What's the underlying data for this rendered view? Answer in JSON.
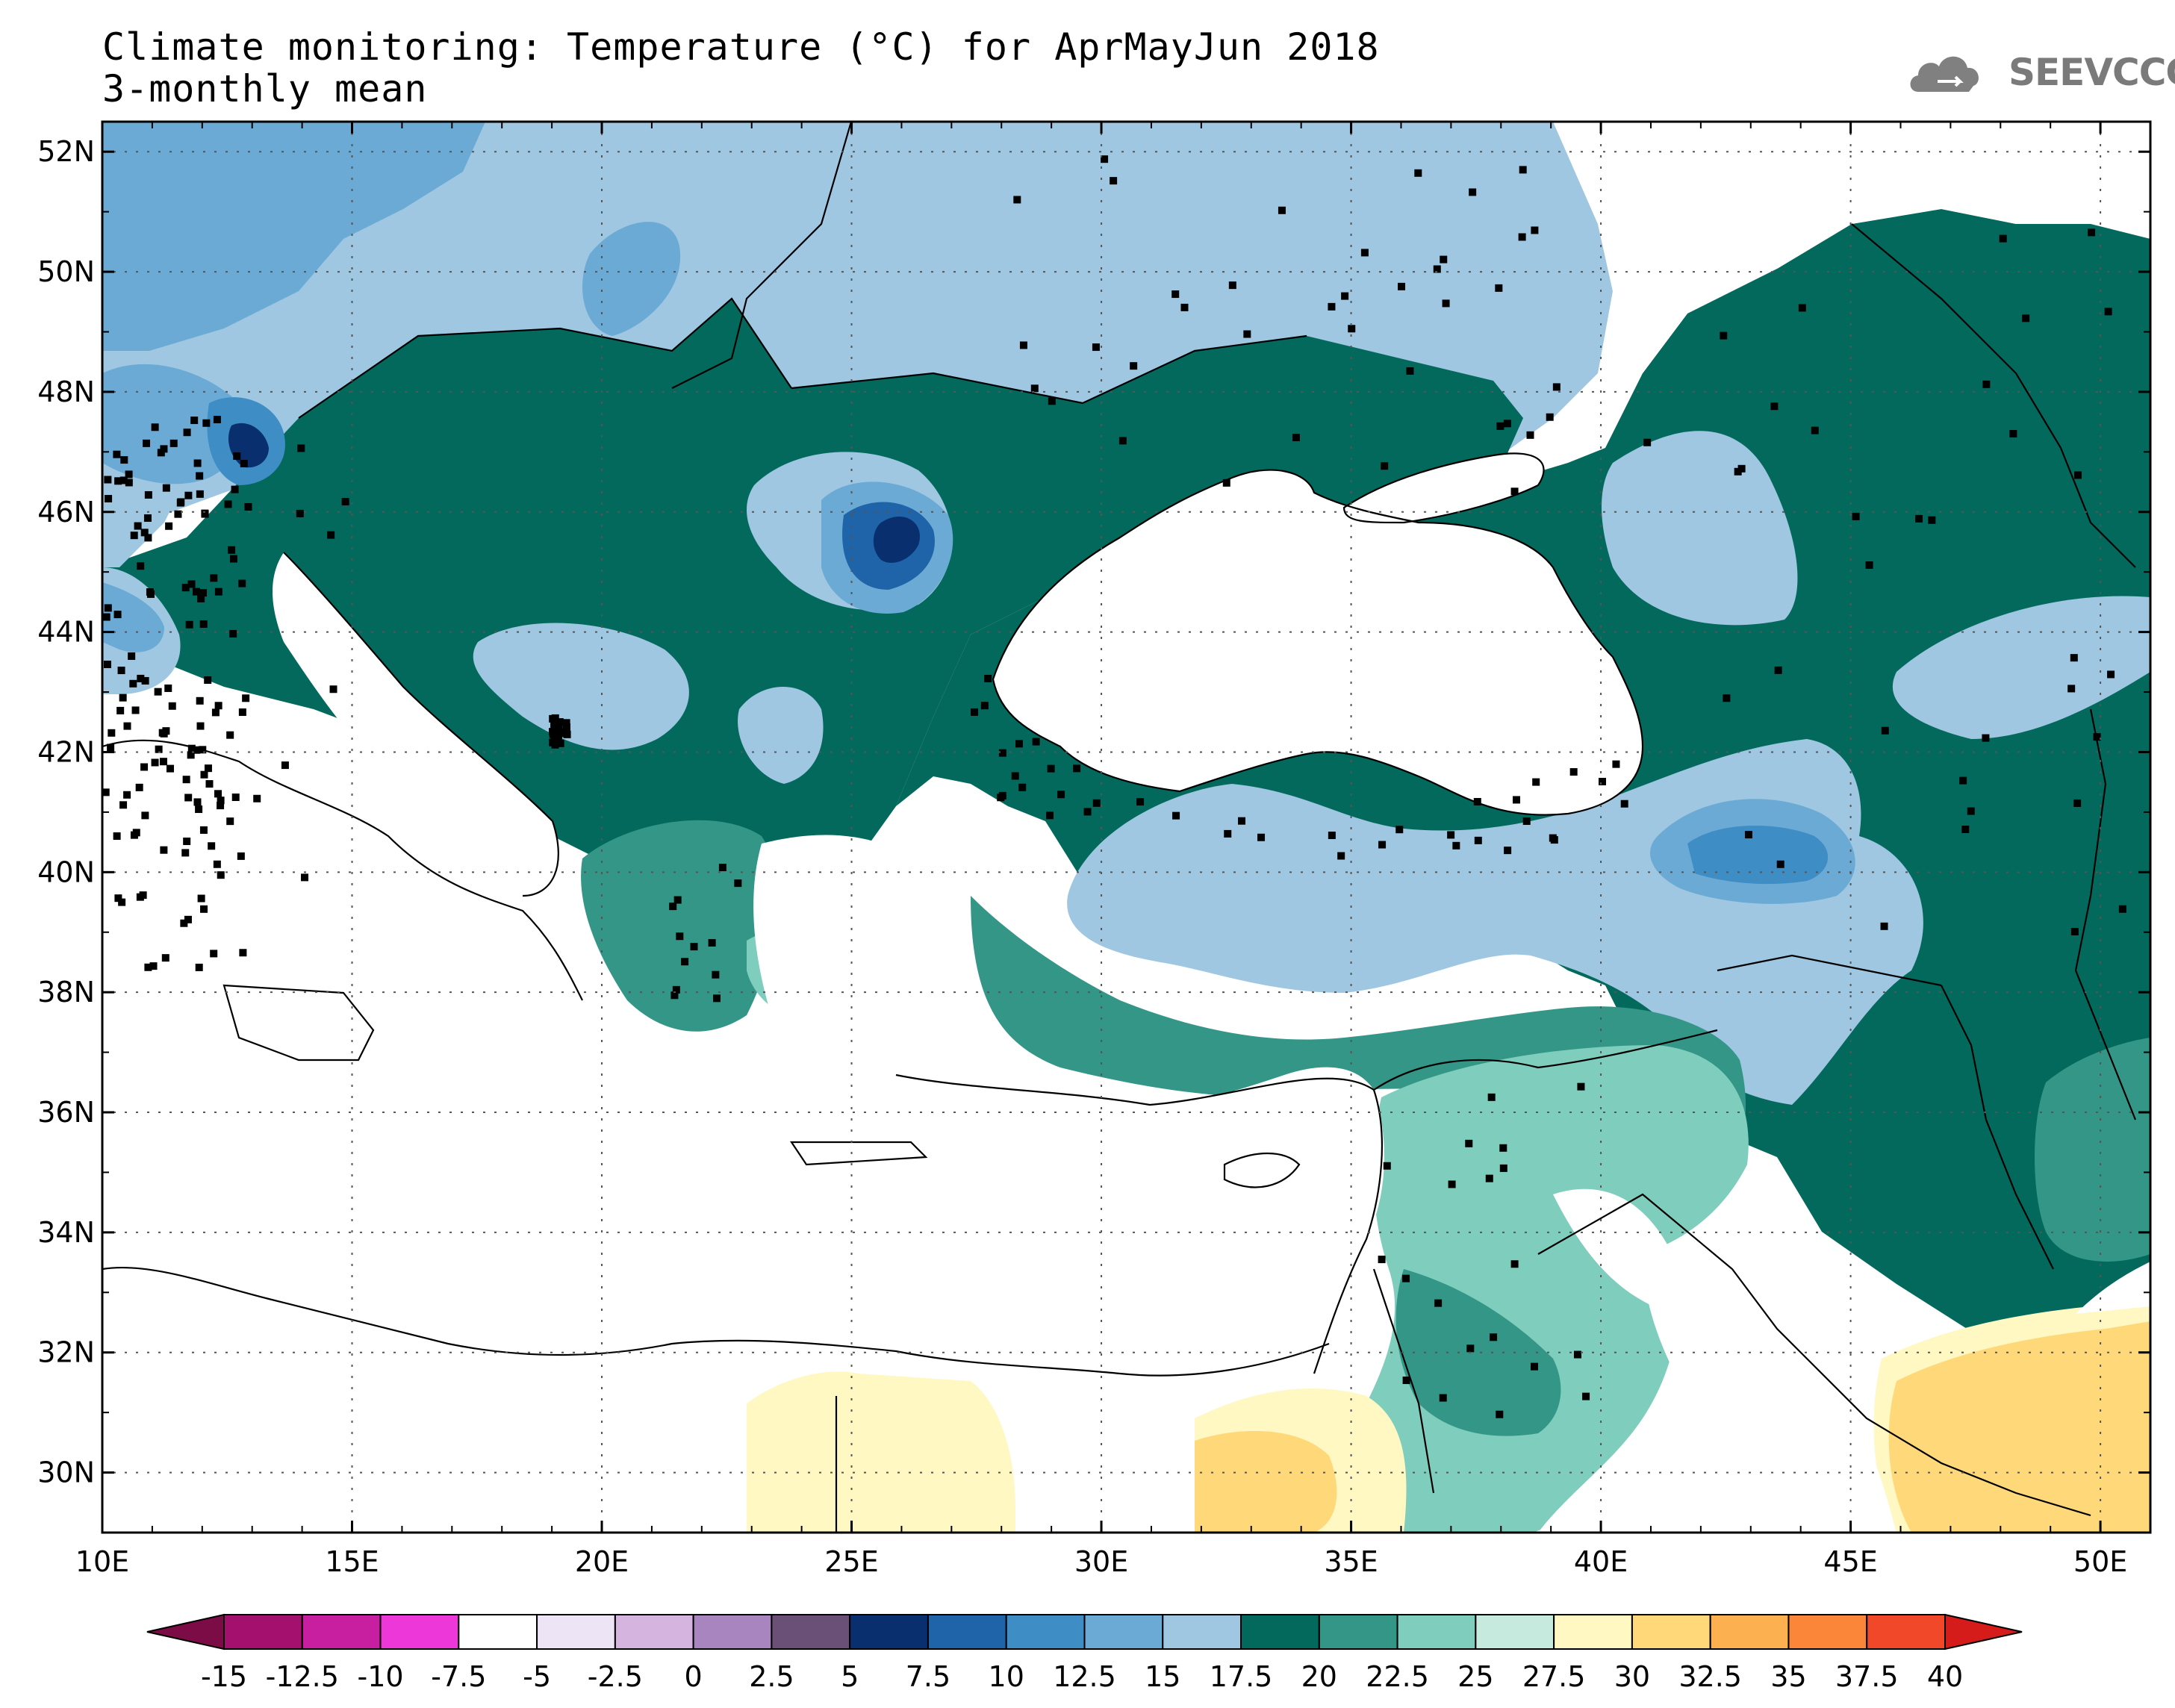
{
  "title_line1": "Climate monitoring: Temperature (°C) for AprMayJun 2018",
  "title_line2": "3-monthly mean",
  "logo_text": "SEEVCCC",
  "map": {
    "lon_range": [
      10,
      51
    ],
    "lat_range": [
      29,
      52.5
    ],
    "lon_ticks": [
      10,
      15,
      20,
      25,
      30,
      35,
      40,
      45,
      50
    ],
    "lon_tick_labels": [
      "10E",
      "15E",
      "20E",
      "25E",
      "30E",
      "35E",
      "40E",
      "45E",
      "50E"
    ],
    "lat_ticks": [
      30,
      32,
      34,
      36,
      38,
      40,
      42,
      44,
      46,
      48,
      50,
      52
    ],
    "lat_tick_labels": [
      "30N",
      "32N",
      "34N",
      "36N",
      "38N",
      "40N",
      "42N",
      "44N",
      "46N",
      "48N",
      "50N",
      "52N"
    ],
    "grid": "dotted"
  },
  "colorbar": {
    "boundaries": [
      "-15",
      "-12.5",
      "-10",
      "-7.5",
      "-5",
      "-2.5",
      "0",
      "2.5",
      "5",
      "7.5",
      "10",
      "12.5",
      "15",
      "17.5",
      "20",
      "22.5",
      "25",
      "27.5",
      "30",
      "32.5",
      "35",
      "37.5",
      "40"
    ],
    "colors": [
      "#7b0c45",
      "#a3106e",
      "#c81fa0",
      "#ee37d8",
      "#ffffff",
      "#ede4f5",
      "#d6b4e0",
      "#a985bf",
      "#6a5077",
      "#0a2f6e",
      "#1f63a8",
      "#3f8dc5",
      "#6baad5",
      "#9fc7e1",
      "#03695c",
      "#339687",
      "#7fcdbd",
      "#c6eade",
      "#fff8c2",
      "#ffd979",
      "#fcb04f",
      "#fb8539",
      "#f04829",
      "#d61b1b"
    ]
  }
}
